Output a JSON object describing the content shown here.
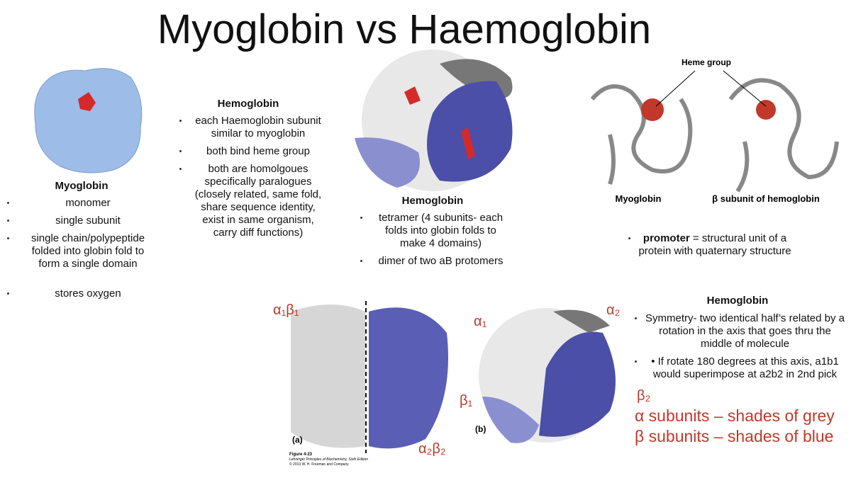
{
  "title": "Myoglobin vs Haemoglobin",
  "myoglobin": {
    "heading": "Myoglobin",
    "bullets": [
      "monomer",
      "single subunit",
      "single chain/polypeptide folded into globin fold to form a single domain",
      "stores oxygen"
    ]
  },
  "hemoglobin_similarity": {
    "heading": "Hemoglobin",
    "bullets": [
      "each Haemoglobin subunit similar to myoglobin",
      "both bind heme group",
      "both are homolgoues specifically paralogues (closely related, same fold, share sequence identity, exist in same organism, carry diff functions)"
    ]
  },
  "hemoglobin_structure": {
    "heading": "Hemoglobin",
    "bullets": [
      "tetramer (4 subunits- each folds into globin folds to make 4 domains)",
      "dimer of two aB protomers"
    ]
  },
  "ribbon_figure": {
    "heme_label": "Heme group",
    "left_label": "Myoglobin",
    "right_label": "β subunit of hemoglobin"
  },
  "promoter_note": {
    "term": "promoter",
    "text": "= structural unit of a protein with quaternary structure"
  },
  "symmetry": {
    "heading": "Hemoglobin",
    "bullets": [
      "Symmetry- two identical half’s related by a rotation in the axis that goes thru the middle of molecule",
      "• If rotate 180 degrees at this axis, a1b1 would superimpose at a2b2 in 2nd pick"
    ]
  },
  "figure_4_23": {
    "label_a": "(a)",
    "label_b": "(b)",
    "a1b1": "α₁β₁",
    "a2b2": "α₂β₂",
    "a1": "α₁",
    "a2": "α₂",
    "b1": "β₁",
    "b2": "β₂",
    "caption": "Figure 4-23",
    "book": "Lehninger Principles of Biochemistry, Sixth Edition",
    "copyright": "© 2013 W. H. Freeman and Company",
    "legend_alpha": "α subunits – shades of grey",
    "legend_beta": "β subunits – shades of blue"
  }
}
